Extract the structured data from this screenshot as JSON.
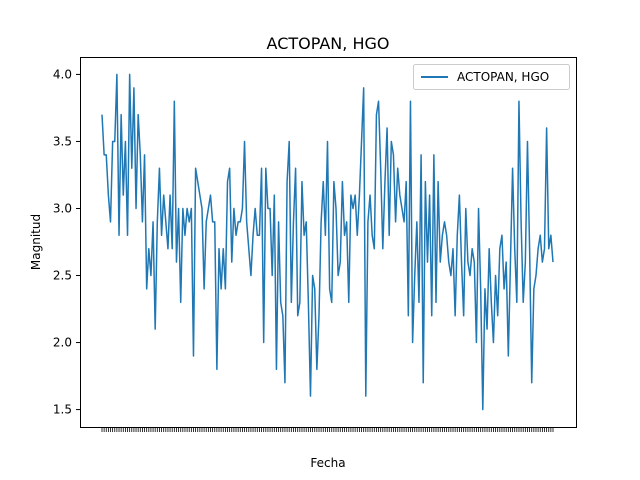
{
  "chart_data": {
    "type": "line",
    "title": "ACTOPAN, HGO",
    "xlabel": "Fecha",
    "ylabel": "Magnitud",
    "ylim": [
      1.37,
      4.13
    ],
    "yticks": [
      1.5,
      2.0,
      2.5,
      3.0,
      3.5,
      4.0
    ],
    "ytick_labels": [
      "1.5",
      "2.0",
      "2.5",
      "3.0",
      "3.5",
      "4.0"
    ],
    "grid": false,
    "legend": {
      "placement": "top-right"
    },
    "series": [
      {
        "name": "ACTOPAN, HGO",
        "color": "#1f77b4",
        "values": [
          3.7,
          3.4,
          3.4,
          3.1,
          2.9,
          3.5,
          3.5,
          4.0,
          2.8,
          3.7,
          3.1,
          3.5,
          2.8,
          4.0,
          3.3,
          3.9,
          3.0,
          3.7,
          3.4,
          2.9,
          3.4,
          2.4,
          2.7,
          2.5,
          2.9,
          2.1,
          2.9,
          3.3,
          2.8,
          3.1,
          2.9,
          2.7,
          3.1,
          2.7,
          3.8,
          2.6,
          3.0,
          2.3,
          3.0,
          2.8,
          3.0,
          2.9,
          3.0,
          1.9,
          3.3,
          3.2,
          3.1,
          3.0,
          2.4,
          2.9,
          3.0,
          3.1,
          2.9,
          2.9,
          1.8,
          2.7,
          2.4,
          2.7,
          2.4,
          3.2,
          3.3,
          2.6,
          3.0,
          2.8,
          2.9,
          2.9,
          3.0,
          3.5,
          2.9,
          2.7,
          2.5,
          2.8,
          3.0,
          2.8,
          2.8,
          3.3,
          2.0,
          3.3,
          3.0,
          3.0,
          2.5,
          3.1,
          1.8,
          2.9,
          2.3,
          2.2,
          1.7,
          3.2,
          3.5,
          2.3,
          2.9,
          3.3,
          2.2,
          2.3,
          3.2,
          2.8,
          2.9,
          2.3,
          1.6,
          2.5,
          2.4,
          1.8,
          2.2,
          2.9,
          3.2,
          2.8,
          3.5,
          2.4,
          2.3,
          3.2,
          3.0,
          2.5,
          2.6,
          3.2,
          2.8,
          2.9,
          2.3,
          3.1,
          3.0,
          3.1,
          2.8,
          3.1,
          3.5,
          3.9,
          1.6,
          2.9,
          3.1,
          2.8,
          2.7,
          3.7,
          3.8,
          3.3,
          2.7,
          3.2,
          3.6,
          2.8,
          3.5,
          3.4,
          2.9,
          3.3,
          3.1,
          3.0,
          2.9,
          3.2,
          2.2,
          3.8,
          2.0,
          2.5,
          2.9,
          2.3,
          3.4,
          1.7,
          3.2,
          2.6,
          3.1,
          2.2,
          3.4,
          2.3,
          3.2,
          2.6,
          2.8,
          2.9,
          2.8,
          2.6,
          2.5,
          2.7,
          2.2,
          2.8,
          3.1,
          2.6,
          2.2,
          3.0,
          2.6,
          2.5,
          2.7,
          2.6,
          2.0,
          3.0,
          2.4,
          1.5,
          2.4,
          2.1,
          2.7,
          2.3,
          2.0,
          2.5,
          2.2,
          2.7,
          2.8,
          2.4,
          2.6,
          1.9,
          2.6,
          3.3,
          2.7,
          2.3,
          3.8,
          2.9,
          2.3,
          2.6,
          3.5,
          2.7,
          1.7,
          2.4,
          2.5,
          2.7,
          2.8,
          2.6,
          2.7,
          3.6,
          2.7,
          2.8,
          2.6
        ]
      }
    ]
  }
}
